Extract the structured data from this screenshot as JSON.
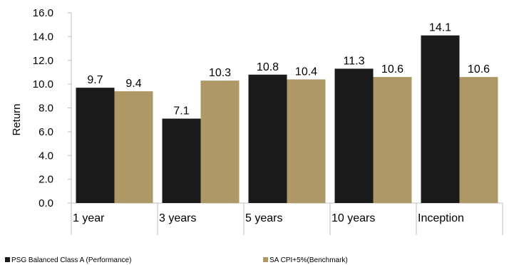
{
  "chart_data": {
    "type": "bar",
    "categories": [
      "1 year",
      "3 years",
      "5 years",
      "10 years",
      "Inception"
    ],
    "series": [
      {
        "name": "PSG Balanced Class A (Performance)",
        "values": [
          9.7,
          7.1,
          10.8,
          11.3,
          14.1
        ],
        "color": "#1a1a1a"
      },
      {
        "name": "SA CPI+5%(Benchmark)",
        "values": [
          9.4,
          10.3,
          10.4,
          10.6,
          10.6
        ],
        "color": "#ae9966"
      }
    ],
    "yticks": [
      "0.0",
      "2.0",
      "4.0",
      "6.0",
      "8.0",
      "10.0",
      "12.0",
      "14.0",
      "16.0"
    ],
    "ylim": [
      0,
      16
    ],
    "ylabel": "Return",
    "xlabel": "",
    "title": "",
    "grid": false,
    "legend_position": "bottom"
  }
}
